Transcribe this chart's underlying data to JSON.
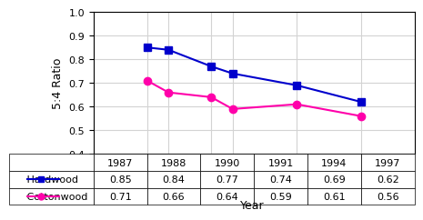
{
  "years": [
    1987,
    1988,
    1990,
    1991,
    1994,
    1997
  ],
  "hardwood": [
    0.85,
    0.84,
    0.77,
    0.74,
    0.69,
    0.62
  ],
  "cottonwood": [
    0.71,
    0.66,
    0.64,
    0.59,
    0.61,
    0.56
  ],
  "hardwood_color": "#0000cc",
  "cottonwood_color": "#ff00aa",
  "ylim": [
    0.4,
    1.0
  ],
  "yticks": [
    0.4,
    0.5,
    0.6,
    0.7,
    0.8,
    0.9,
    1.0
  ],
  "ylabel": "5:4 Ratio",
  "xlabel": "Year",
  "title": "",
  "legend_hardwood": "Hardwood",
  "legend_cottonwood": "Cottonwood",
  "table_hardwood_label": "Hardwood",
  "table_cottonwood_label": "Cottonwood"
}
